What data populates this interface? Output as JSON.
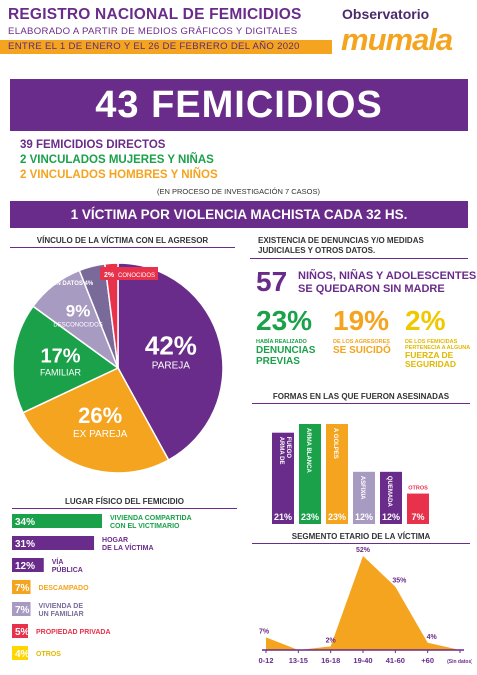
{
  "header": {
    "title": "REGISTRO NACIONAL DE FEMICIDIOS",
    "subtitle": "ELABORADO A PARTIR DE MEDIOS GRÁFICOS Y DIGITALES",
    "period": "ENTRE EL 1 DE ENERO Y EL 26 DE FEBRERO DEL AÑO 2020",
    "logo_top": "Observatorio",
    "logo_bottom": "mumala"
  },
  "total": "43 FEMICIDIOS",
  "breakdown": {
    "direct": "39 FEMICIDIOS DIRECTOS",
    "linked_women": "2 VINCULADOS MUJERES Y NIÑAS",
    "linked_men": "2 VINCULADOS HOMBRES Y NIÑOS",
    "note": "(EN PROCESO DE INVESTIGACIÓN 7 CASOS)"
  },
  "rate": "1 VÍCTIMA POR VIOLENCIA MACHISTA CADA 32 HS.",
  "colors": {
    "purple": "#6a2c8a",
    "green": "#1aa14a",
    "orange": "#f4a41f",
    "lavender": "#a89bc2",
    "red": "#e8324b",
    "yellow": "#ffd600"
  },
  "stats": {
    "header": "EXISTENCIA DE DENUNCIAS Y/O MEDIDAS JUDICIALES Y OTROS DATOS.",
    "orphans_number": "57",
    "orphans_text_1": "NIÑOS, NIÑAS Y ADOLESCENTES",
    "orphans_text_2": "SE QUEDARON SIN MADRE",
    "items": [
      {
        "pct": "23%",
        "small": "HABÍA REALIZADO",
        "big": "DENUNCIAS PREVIAS"
      },
      {
        "pct": "19%",
        "small": "DE LOS AGRESORES",
        "big": "SE SUICIDÓ"
      },
      {
        "pct": "2%",
        "small": "DE LOS FEMICIDAS PERTENECIA A ALGUNA",
        "big": "FUERZA DE SEGURIDAD"
      }
    ]
  },
  "chart_data": [
    {
      "type": "pie",
      "title": "VÍNCULO DE LA VÍCTIMA CON EL AGRESOR",
      "slices": [
        {
          "label": "PAREJA",
          "value": 42,
          "text": "42%"
        },
        {
          "label": "EX PAREJA",
          "value": 26,
          "text": "26%"
        },
        {
          "label": "FAMILIAR",
          "value": 17,
          "text": "17%"
        },
        {
          "label": "DESCONOCIDOS",
          "value": 9,
          "text": "9%"
        },
        {
          "label": "SIN DATOS",
          "value": 4,
          "text": "4%"
        },
        {
          "label": "CONOCIDOS",
          "value": 2,
          "text": "2%"
        }
      ]
    },
    {
      "type": "bar",
      "title": "FORMAS EN LAS QUE FUERON ASESINADAS",
      "categories": [
        "ARMA DE FUEGO",
        "ARMA BLANCA",
        "A GOLPES",
        "ASFIXIA",
        "QUEMADA",
        "OTROS"
      ],
      "values": [
        21,
        23,
        23,
        12,
        12,
        7
      ],
      "labels": [
        "21%",
        "23%",
        "23%",
        "12%",
        "12%",
        "7%"
      ]
    },
    {
      "type": "bar",
      "title": "LUGAR FÍSICO DEL FEMICIDIO",
      "categories": [
        "VIVIENDA COMPARTIDA CON EL VICTIMARIO",
        "HOGAR DE LA VÍCTIMA",
        "VÍA PÚBLICA",
        "DESCAMPADO",
        "VIVIENDA DE UN FAMILIAR",
        "PROPIEDAD PRIVADA",
        "OTROS"
      ],
      "values": [
        34,
        31,
        12,
        7,
        7,
        5,
        4
      ],
      "labels": [
        "34%",
        "31%",
        "12%",
        "7%",
        "7%",
        "5%",
        "4%"
      ]
    },
    {
      "type": "area",
      "title": "SEGMENTO ETARIO DE LA VÍCTIMA",
      "categories": [
        "0-12",
        "13-15",
        "16-18",
        "19-40",
        "41-60",
        "+60",
        "(Sin datos)"
      ],
      "values": [
        7,
        0,
        2,
        52,
        35,
        4,
        0
      ],
      "labels": [
        "7%",
        "",
        "2%",
        "52%",
        "35%",
        "4%",
        ""
      ]
    }
  ]
}
